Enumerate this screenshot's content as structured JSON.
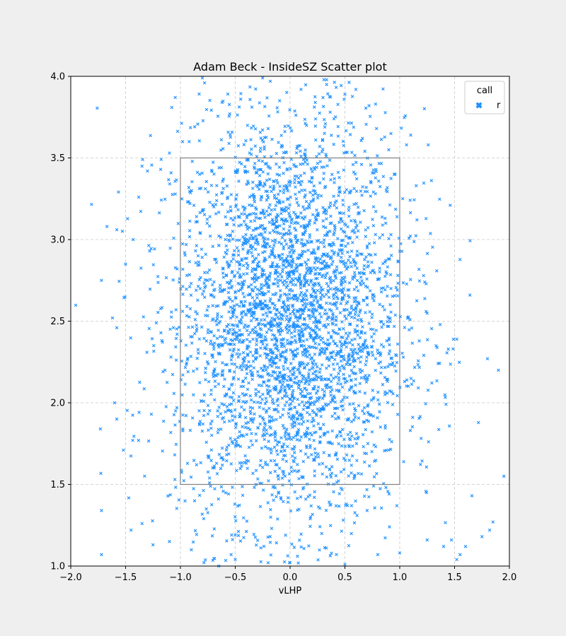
{
  "chart_data": {
    "type": "scatter",
    "title": "Adam Beck - InsideSZ Scatter plot",
    "xlabel": "vLHP",
    "ylabel": "",
    "xlim": [
      -2.0,
      2.0
    ],
    "ylim": [
      1.0,
      4.0
    ],
    "x_ticks": [
      "−2.0",
      "−1.5",
      "−1.0",
      "−0.5",
      "0.0",
      "0.5",
      "1.0",
      "1.5",
      "2.0"
    ],
    "x_tick_values": [
      -2.0,
      -1.5,
      -1.0,
      -0.5,
      0.0,
      0.5,
      1.0,
      1.5,
      2.0
    ],
    "y_ticks": [
      "1.0",
      "1.5",
      "2.0",
      "2.5",
      "3.0",
      "3.5",
      "4.0"
    ],
    "y_tick_values": [
      1.0,
      1.5,
      2.0,
      2.5,
      3.0,
      3.5,
      4.0
    ],
    "grid": true,
    "legend": {
      "title": "call",
      "placement": "top-right",
      "entries": [
        {
          "label": "r",
          "marker": "x",
          "color": "#1e90ff"
        }
      ]
    },
    "strike_zone": {
      "x": [
        -1.0,
        1.0
      ],
      "y": [
        1.5,
        3.5
      ],
      "color": "#808080"
    },
    "series": [
      {
        "name": "r",
        "marker": "x",
        "color": "#1e90ff",
        "approx_point_count": 3800,
        "sample_points": [
          [
            -1.72,
            2.75
          ],
          [
            -1.73,
            1.84
          ],
          [
            -1.72,
            1.34
          ],
          [
            -1.72,
            1.07
          ],
          [
            -1.67,
            3.08
          ],
          [
            -1.58,
            3.06
          ],
          [
            -1.58,
            2.46
          ],
          [
            -1.52,
            1.71
          ],
          [
            -1.5,
            2.85
          ],
          [
            -1.43,
            3.0
          ],
          [
            -1.38,
            3.26
          ],
          [
            -1.35,
            3.45
          ],
          [
            -1.3,
            3.42
          ],
          [
            -1.28,
            2.93
          ],
          [
            -1.25,
            1.13
          ],
          [
            -1.18,
            3.43
          ],
          [
            -1.1,
            3.53
          ],
          [
            -1.05,
            1.53
          ],
          [
            -1.03,
            2.82
          ],
          [
            -0.98,
            3.6
          ],
          [
            -0.92,
            3.6
          ],
          [
            -0.8,
            3.99
          ],
          [
            -0.78,
            3.96
          ],
          [
            -0.62,
            3.84
          ],
          [
            -0.45,
            3.86
          ],
          [
            -0.25,
            3.99
          ],
          [
            -0.18,
            3.97
          ],
          [
            0.1,
            3.92
          ],
          [
            0.23,
            3.84
          ],
          [
            0.3,
            3.87
          ],
          [
            0.5,
            3.89
          ],
          [
            0.6,
            3.92
          ],
          [
            0.72,
            3.82
          ],
          [
            0.78,
            3.83
          ],
          [
            0.9,
            3.55
          ],
          [
            1.1,
            3.64
          ],
          [
            1.15,
            3.33
          ],
          [
            1.26,
            3.58
          ],
          [
            1.46,
            3.21
          ],
          [
            1.49,
            2.39
          ],
          [
            1.52,
            2.39
          ],
          [
            1.64,
            2.66
          ],
          [
            1.8,
            2.27
          ],
          [
            1.9,
            2.2
          ],
          [
            1.95,
            1.55
          ],
          [
            1.85,
            1.27
          ],
          [
            1.82,
            1.22
          ],
          [
            1.75,
            1.18
          ],
          [
            1.6,
            1.12
          ],
          [
            1.55,
            1.07
          ],
          [
            1.52,
            1.04
          ],
          [
            1.4,
            1.12
          ],
          [
            1.25,
            1.16
          ],
          [
            1.0,
            1.08
          ],
          [
            0.8,
            1.07
          ],
          [
            0.5,
            1.01
          ],
          [
            0.0,
            1.02
          ],
          [
            -0.2,
            1.02
          ],
          [
            -0.5,
            1.04
          ],
          [
            -0.65,
            1.0
          ],
          [
            -0.9,
            1.1
          ],
          [
            -1.1,
            1.15
          ],
          [
            -1.35,
            1.26
          ],
          [
            -1.45,
            1.22
          ],
          [
            -1.58,
            1.9
          ],
          [
            -1.6,
            2.0
          ],
          [
            -1.62,
            2.52
          ],
          [
            -0.55,
            3.77
          ],
          [
            0.4,
            3.74
          ],
          [
            -0.2,
            3.68
          ],
          [
            0.15,
            3.7
          ],
          [
            0.95,
            3.4
          ]
        ],
        "scatter_model": {
          "x_mean": 0.0,
          "x_sd": 0.52,
          "y_mean": 2.5,
          "y_sd": 0.62
        }
      }
    ]
  }
}
